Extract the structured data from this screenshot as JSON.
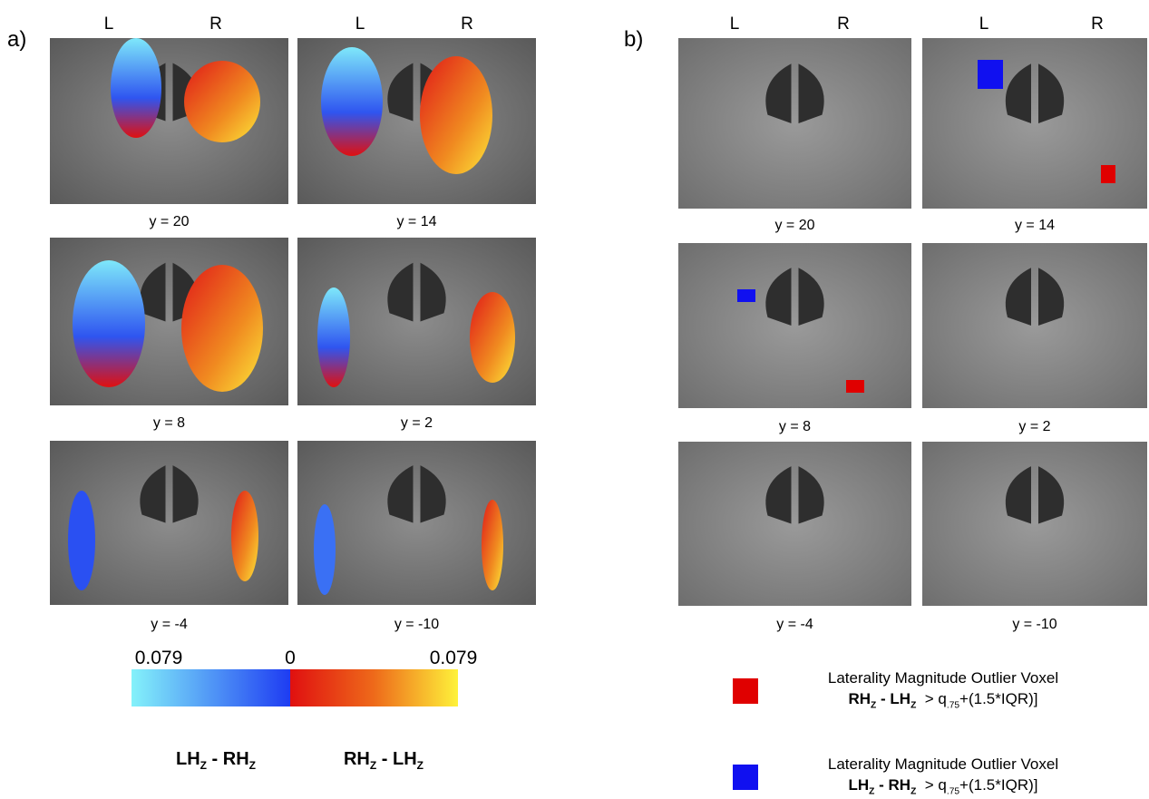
{
  "panel_a": {
    "label": "a)",
    "side_labels": [
      "L",
      "R",
      "L",
      "R"
    ],
    "slices": [
      "y = 20",
      "y = 14",
      "y = 8",
      "y = 2",
      "y = -4",
      "y = -10"
    ],
    "colorbar": {
      "left_label": "0.079",
      "mid_label": "0",
      "right_label": "0.079"
    },
    "contrast_labels": [
      {
        "a": "LH",
        "a_sub": "Z",
        "sep": " - ",
        "b": "RH",
        "b_sub": "Z"
      },
      {
        "a": "RH",
        "a_sub": "Z",
        "sep": " - ",
        "b": "LH",
        "b_sub": "Z"
      }
    ]
  },
  "panel_b": {
    "label": "b)",
    "side_labels": [
      "L",
      "R",
      "L",
      "R"
    ],
    "slices": [
      "y = 20",
      "y = 14",
      "y = 8",
      "y = 2",
      "y = -4",
      "y = -10"
    ],
    "legend": [
      {
        "color": "#e00000",
        "title": "Laterality Magnitude Outlier Voxel",
        "a": "RH",
        "a_sub": "Z",
        "sep": " - ",
        "b": "LH",
        "b_sub": "Z",
        "threshold_prefix": "> q",
        "threshold_sub": ".75",
        "threshold_suffix": "+(1.5*IQR)]"
      },
      {
        "color": "#1010f0",
        "title": "Laterality Magnitude Outlier Voxel",
        "a": "LH",
        "a_sub": "Z",
        "sep": " - ",
        "b": "RH",
        "b_sub": "Z",
        "threshold_prefix": "> q",
        "threshold_sub": ".75",
        "threshold_suffix": "+(1.5*IQR)]"
      }
    ]
  }
}
